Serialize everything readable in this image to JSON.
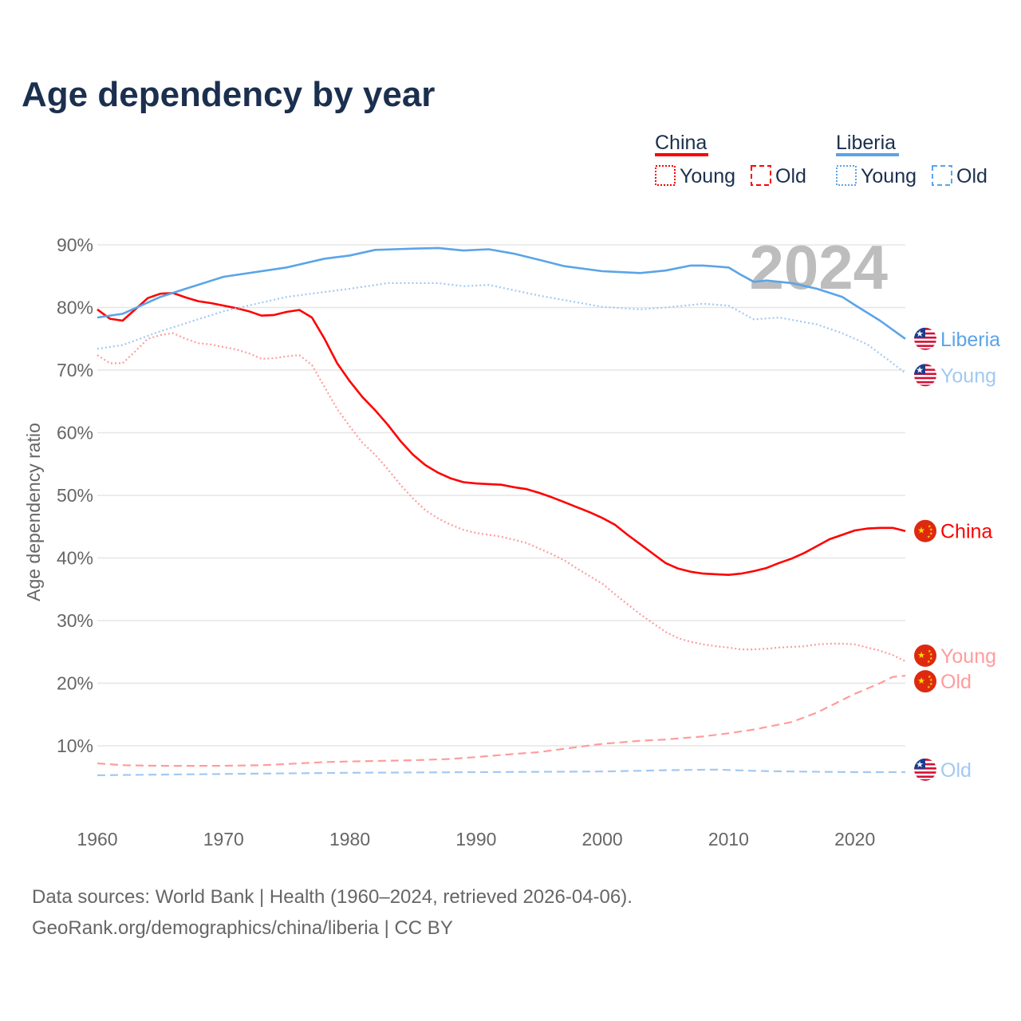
{
  "chart_data": {
    "type": "line",
    "title": "Age dependency by year",
    "xlabel": "",
    "ylabel": "Age dependency ratio",
    "xlim": [
      1960,
      2024
    ],
    "ylim": [
      0,
      90
    ],
    "x_ticks": [
      "1960",
      "1970",
      "1980",
      "1990",
      "2000",
      "2010",
      "2020"
    ],
    "y_ticks": [
      "10%",
      "20%",
      "30%",
      "40%",
      "50%",
      "60%",
      "70%",
      "80%",
      "90%"
    ],
    "grid": true,
    "year_watermark": "2024",
    "legend": {
      "placement": "top-right",
      "groups": [
        {
          "name": "China",
          "color": "#ff0000",
          "items": [
            "Young",
            "Old"
          ]
        },
        {
          "name": "Liberia",
          "color": "#5ba4e8",
          "items": [
            "Young",
            "Old"
          ]
        }
      ]
    },
    "series": [
      {
        "name": "China",
        "label": "China",
        "country": "china",
        "style": "solid",
        "color": "#ff0000",
        "points": [
          [
            1960,
            79.7
          ],
          [
            1961,
            78.2
          ],
          [
            1962,
            77.9
          ],
          [
            1963,
            79.7
          ],
          [
            1964,
            81.5
          ],
          [
            1965,
            82.2
          ],
          [
            1966,
            82.3
          ],
          [
            1967,
            81.6
          ],
          [
            1968,
            81.0
          ],
          [
            1969,
            80.7
          ],
          [
            1970,
            80.3
          ],
          [
            1971,
            79.9
          ],
          [
            1972,
            79.4
          ],
          [
            1973,
            78.7
          ],
          [
            1974,
            78.8
          ],
          [
            1975,
            79.3
          ],
          [
            1976,
            79.6
          ],
          [
            1977,
            78.4
          ],
          [
            1978,
            75.0
          ],
          [
            1979,
            71.1
          ],
          [
            1980,
            68.2
          ],
          [
            1981,
            65.7
          ],
          [
            1982,
            63.6
          ],
          [
            1983,
            61.3
          ],
          [
            1984,
            58.7
          ],
          [
            1985,
            56.5
          ],
          [
            1986,
            54.8
          ],
          [
            1987,
            53.6
          ],
          [
            1988,
            52.7
          ],
          [
            1989,
            52.1
          ],
          [
            1990,
            51.9
          ],
          [
            1991,
            51.8
          ],
          [
            1992,
            51.7
          ],
          [
            1993,
            51.3
          ],
          [
            1994,
            51.0
          ],
          [
            1995,
            50.4
          ],
          [
            1996,
            49.7
          ],
          [
            1997,
            48.9
          ],
          [
            1998,
            48.1
          ],
          [
            1999,
            47.3
          ],
          [
            2000,
            46.4
          ],
          [
            2001,
            45.3
          ],
          [
            2002,
            43.7
          ],
          [
            2003,
            42.2
          ],
          [
            2004,
            40.7
          ],
          [
            2005,
            39.2
          ],
          [
            2006,
            38.3
          ],
          [
            2007,
            37.8
          ],
          [
            2008,
            37.5
          ],
          [
            2009,
            37.4
          ],
          [
            2010,
            37.3
          ],
          [
            2011,
            37.5
          ],
          [
            2012,
            37.9
          ],
          [
            2013,
            38.4
          ],
          [
            2014,
            39.2
          ],
          [
            2015,
            39.9
          ],
          [
            2016,
            40.8
          ],
          [
            2017,
            41.9
          ],
          [
            2018,
            43.0
          ],
          [
            2019,
            43.7
          ],
          [
            2020,
            44.4
          ],
          [
            2021,
            44.7
          ],
          [
            2022,
            44.8
          ],
          [
            2023,
            44.8
          ],
          [
            2024,
            44.3
          ]
        ]
      },
      {
        "name": "China Young",
        "label": "Young",
        "country": "china",
        "style": "dotted",
        "color": "#ff9c9c",
        "points": [
          [
            1960,
            72.4
          ],
          [
            1961,
            71.1
          ],
          [
            1962,
            71.1
          ],
          [
            1963,
            73.0
          ],
          [
            1964,
            75.0
          ],
          [
            1965,
            75.6
          ],
          [
            1966,
            75.9
          ],
          [
            1967,
            75.0
          ],
          [
            1968,
            74.3
          ],
          [
            1969,
            74.1
          ],
          [
            1970,
            73.7
          ],
          [
            1971,
            73.3
          ],
          [
            1972,
            72.7
          ],
          [
            1973,
            71.8
          ],
          [
            1974,
            71.9
          ],
          [
            1975,
            72.2
          ],
          [
            1976,
            72.4
          ],
          [
            1977,
            70.8
          ],
          [
            1978,
            67.3
          ],
          [
            1979,
            63.8
          ],
          [
            1980,
            61.0
          ],
          [
            1981,
            58.4
          ],
          [
            1982,
            56.5
          ],
          [
            1983,
            54.2
          ],
          [
            1984,
            51.7
          ],
          [
            1985,
            49.5
          ],
          [
            1986,
            47.6
          ],
          [
            1987,
            46.3
          ],
          [
            1988,
            45.3
          ],
          [
            1989,
            44.5
          ],
          [
            1990,
            44.0
          ],
          [
            1991,
            43.7
          ],
          [
            1992,
            43.4
          ],
          [
            1993,
            42.9
          ],
          [
            1994,
            42.4
          ],
          [
            1995,
            41.5
          ],
          [
            1996,
            40.6
          ],
          [
            1997,
            39.6
          ],
          [
            1998,
            38.3
          ],
          [
            1999,
            37.1
          ],
          [
            2000,
            35.9
          ],
          [
            2001,
            34.2
          ],
          [
            2002,
            32.6
          ],
          [
            2003,
            31.0
          ],
          [
            2004,
            29.6
          ],
          [
            2005,
            28.2
          ],
          [
            2006,
            27.2
          ],
          [
            2007,
            26.6
          ],
          [
            2008,
            26.2
          ],
          [
            2009,
            25.9
          ],
          [
            2010,
            25.7
          ],
          [
            2011,
            25.4
          ],
          [
            2012,
            25.4
          ],
          [
            2013,
            25.5
          ],
          [
            2014,
            25.7
          ],
          [
            2015,
            25.8
          ],
          [
            2016,
            25.9
          ],
          [
            2017,
            26.2
          ],
          [
            2018,
            26.3
          ],
          [
            2019,
            26.3
          ],
          [
            2020,
            26.2
          ],
          [
            2021,
            25.7
          ],
          [
            2022,
            25.2
          ],
          [
            2023,
            24.5
          ],
          [
            2024,
            23.5
          ]
        ]
      },
      {
        "name": "China Old",
        "label": "Old",
        "country": "china",
        "style": "dashed",
        "color": "#ff9c9c",
        "points": [
          [
            1960,
            7.2
          ],
          [
            1962,
            6.9
          ],
          [
            1965,
            6.8
          ],
          [
            1970,
            6.8
          ],
          [
            1973,
            6.9
          ],
          [
            1975,
            7.1
          ],
          [
            1978,
            7.4
          ],
          [
            1980,
            7.5
          ],
          [
            1985,
            7.7
          ],
          [
            1988,
            7.9
          ],
          [
            1990,
            8.2
          ],
          [
            1993,
            8.7
          ],
          [
            1995,
            9.0
          ],
          [
            1998,
            9.8
          ],
          [
            2000,
            10.3
          ],
          [
            2003,
            10.8
          ],
          [
            2005,
            11.0
          ],
          [
            2008,
            11.5
          ],
          [
            2010,
            12.0
          ],
          [
            2012,
            12.6
          ],
          [
            2014,
            13.4
          ],
          [
            2015,
            13.8
          ],
          [
            2017,
            15.3
          ],
          [
            2018,
            16.3
          ],
          [
            2020,
            18.3
          ],
          [
            2022,
            20.0
          ],
          [
            2023,
            21.0
          ],
          [
            2024,
            21.2
          ]
        ]
      },
      {
        "name": "Liberia",
        "label": "Liberia",
        "country": "liberia",
        "style": "solid",
        "color": "#5ba4e8",
        "points": [
          [
            1960,
            78.4
          ],
          [
            1962,
            79.0
          ],
          [
            1965,
            81.7
          ],
          [
            1967,
            83.0
          ],
          [
            1970,
            84.9
          ],
          [
            1975,
            86.4
          ],
          [
            1978,
            87.8
          ],
          [
            1980,
            88.3
          ],
          [
            1982,
            89.2
          ],
          [
            1985,
            89.4
          ],
          [
            1987,
            89.5
          ],
          [
            1989,
            89.1
          ],
          [
            1991,
            89.3
          ],
          [
            1993,
            88.6
          ],
          [
            1995,
            87.6
          ],
          [
            1997,
            86.6
          ],
          [
            2000,
            85.8
          ],
          [
            2003,
            85.5
          ],
          [
            2005,
            85.9
          ],
          [
            2007,
            86.7
          ],
          [
            2008,
            86.7
          ],
          [
            2010,
            86.4
          ],
          [
            2011,
            85.2
          ],
          [
            2012,
            84.1
          ],
          [
            2013,
            84.3
          ],
          [
            2015,
            83.9
          ],
          [
            2017,
            83.0
          ],
          [
            2019,
            81.7
          ],
          [
            2020,
            80.4
          ],
          [
            2022,
            77.9
          ],
          [
            2024,
            75.0
          ]
        ]
      },
      {
        "name": "Liberia Young",
        "label": "Young",
        "country": "liberia",
        "style": "dotted",
        "color": "#a2c9f2",
        "points": [
          [
            1960,
            73.4
          ],
          [
            1962,
            74.0
          ],
          [
            1965,
            76.2
          ],
          [
            1970,
            79.4
          ],
          [
            1975,
            81.7
          ],
          [
            1980,
            83.0
          ],
          [
            1983,
            83.9
          ],
          [
            1987,
            83.9
          ],
          [
            1989,
            83.4
          ],
          [
            1991,
            83.6
          ],
          [
            1995,
            81.9
          ],
          [
            2000,
            80.1
          ],
          [
            2003,
            79.7
          ],
          [
            2005,
            80.0
          ],
          [
            2008,
            80.6
          ],
          [
            2010,
            80.3
          ],
          [
            2012,
            78.1
          ],
          [
            2014,
            78.4
          ],
          [
            2017,
            77.3
          ],
          [
            2019,
            75.9
          ],
          [
            2021,
            74.1
          ],
          [
            2023,
            71.1
          ],
          [
            2024,
            69.5
          ]
        ]
      },
      {
        "name": "Liberia Old",
        "label": "Old",
        "country": "liberia",
        "style": "dashed",
        "color": "#a2c9f2",
        "points": [
          [
            1960,
            5.3
          ],
          [
            1970,
            5.5
          ],
          [
            1980,
            5.7
          ],
          [
            1990,
            5.8
          ],
          [
            2000,
            5.9
          ],
          [
            2005,
            6.1
          ],
          [
            2009,
            6.2
          ],
          [
            2012,
            6.0
          ],
          [
            2015,
            5.9
          ],
          [
            2020,
            5.8
          ],
          [
            2024,
            5.8
          ]
        ]
      }
    ],
    "end_labels": [
      {
        "text": "Liberia",
        "country": "liberia",
        "color": "#5ba4e8",
        "value": 75.0
      },
      {
        "text": "Young",
        "country": "liberia",
        "color": "#a2c9f2",
        "value": 69.2
      },
      {
        "text": "China",
        "country": "china",
        "color": "#ff0000",
        "value": 44.3
      },
      {
        "text": "Young",
        "country": "china",
        "color": "#ff9c9c",
        "value": 24.4
      },
      {
        "text": "Old",
        "country": "china",
        "color": "#ff9c9c",
        "value": 20.3
      },
      {
        "text": "Old",
        "country": "liberia",
        "color": "#a2c9f2",
        "value": 6.2
      }
    ]
  },
  "source": {
    "line1": "Data sources: World Bank | Health (1960–2024, retrieved 2026-04-06).",
    "line2": "GeoRank.org/demographics/china/liberia | CC BY"
  }
}
